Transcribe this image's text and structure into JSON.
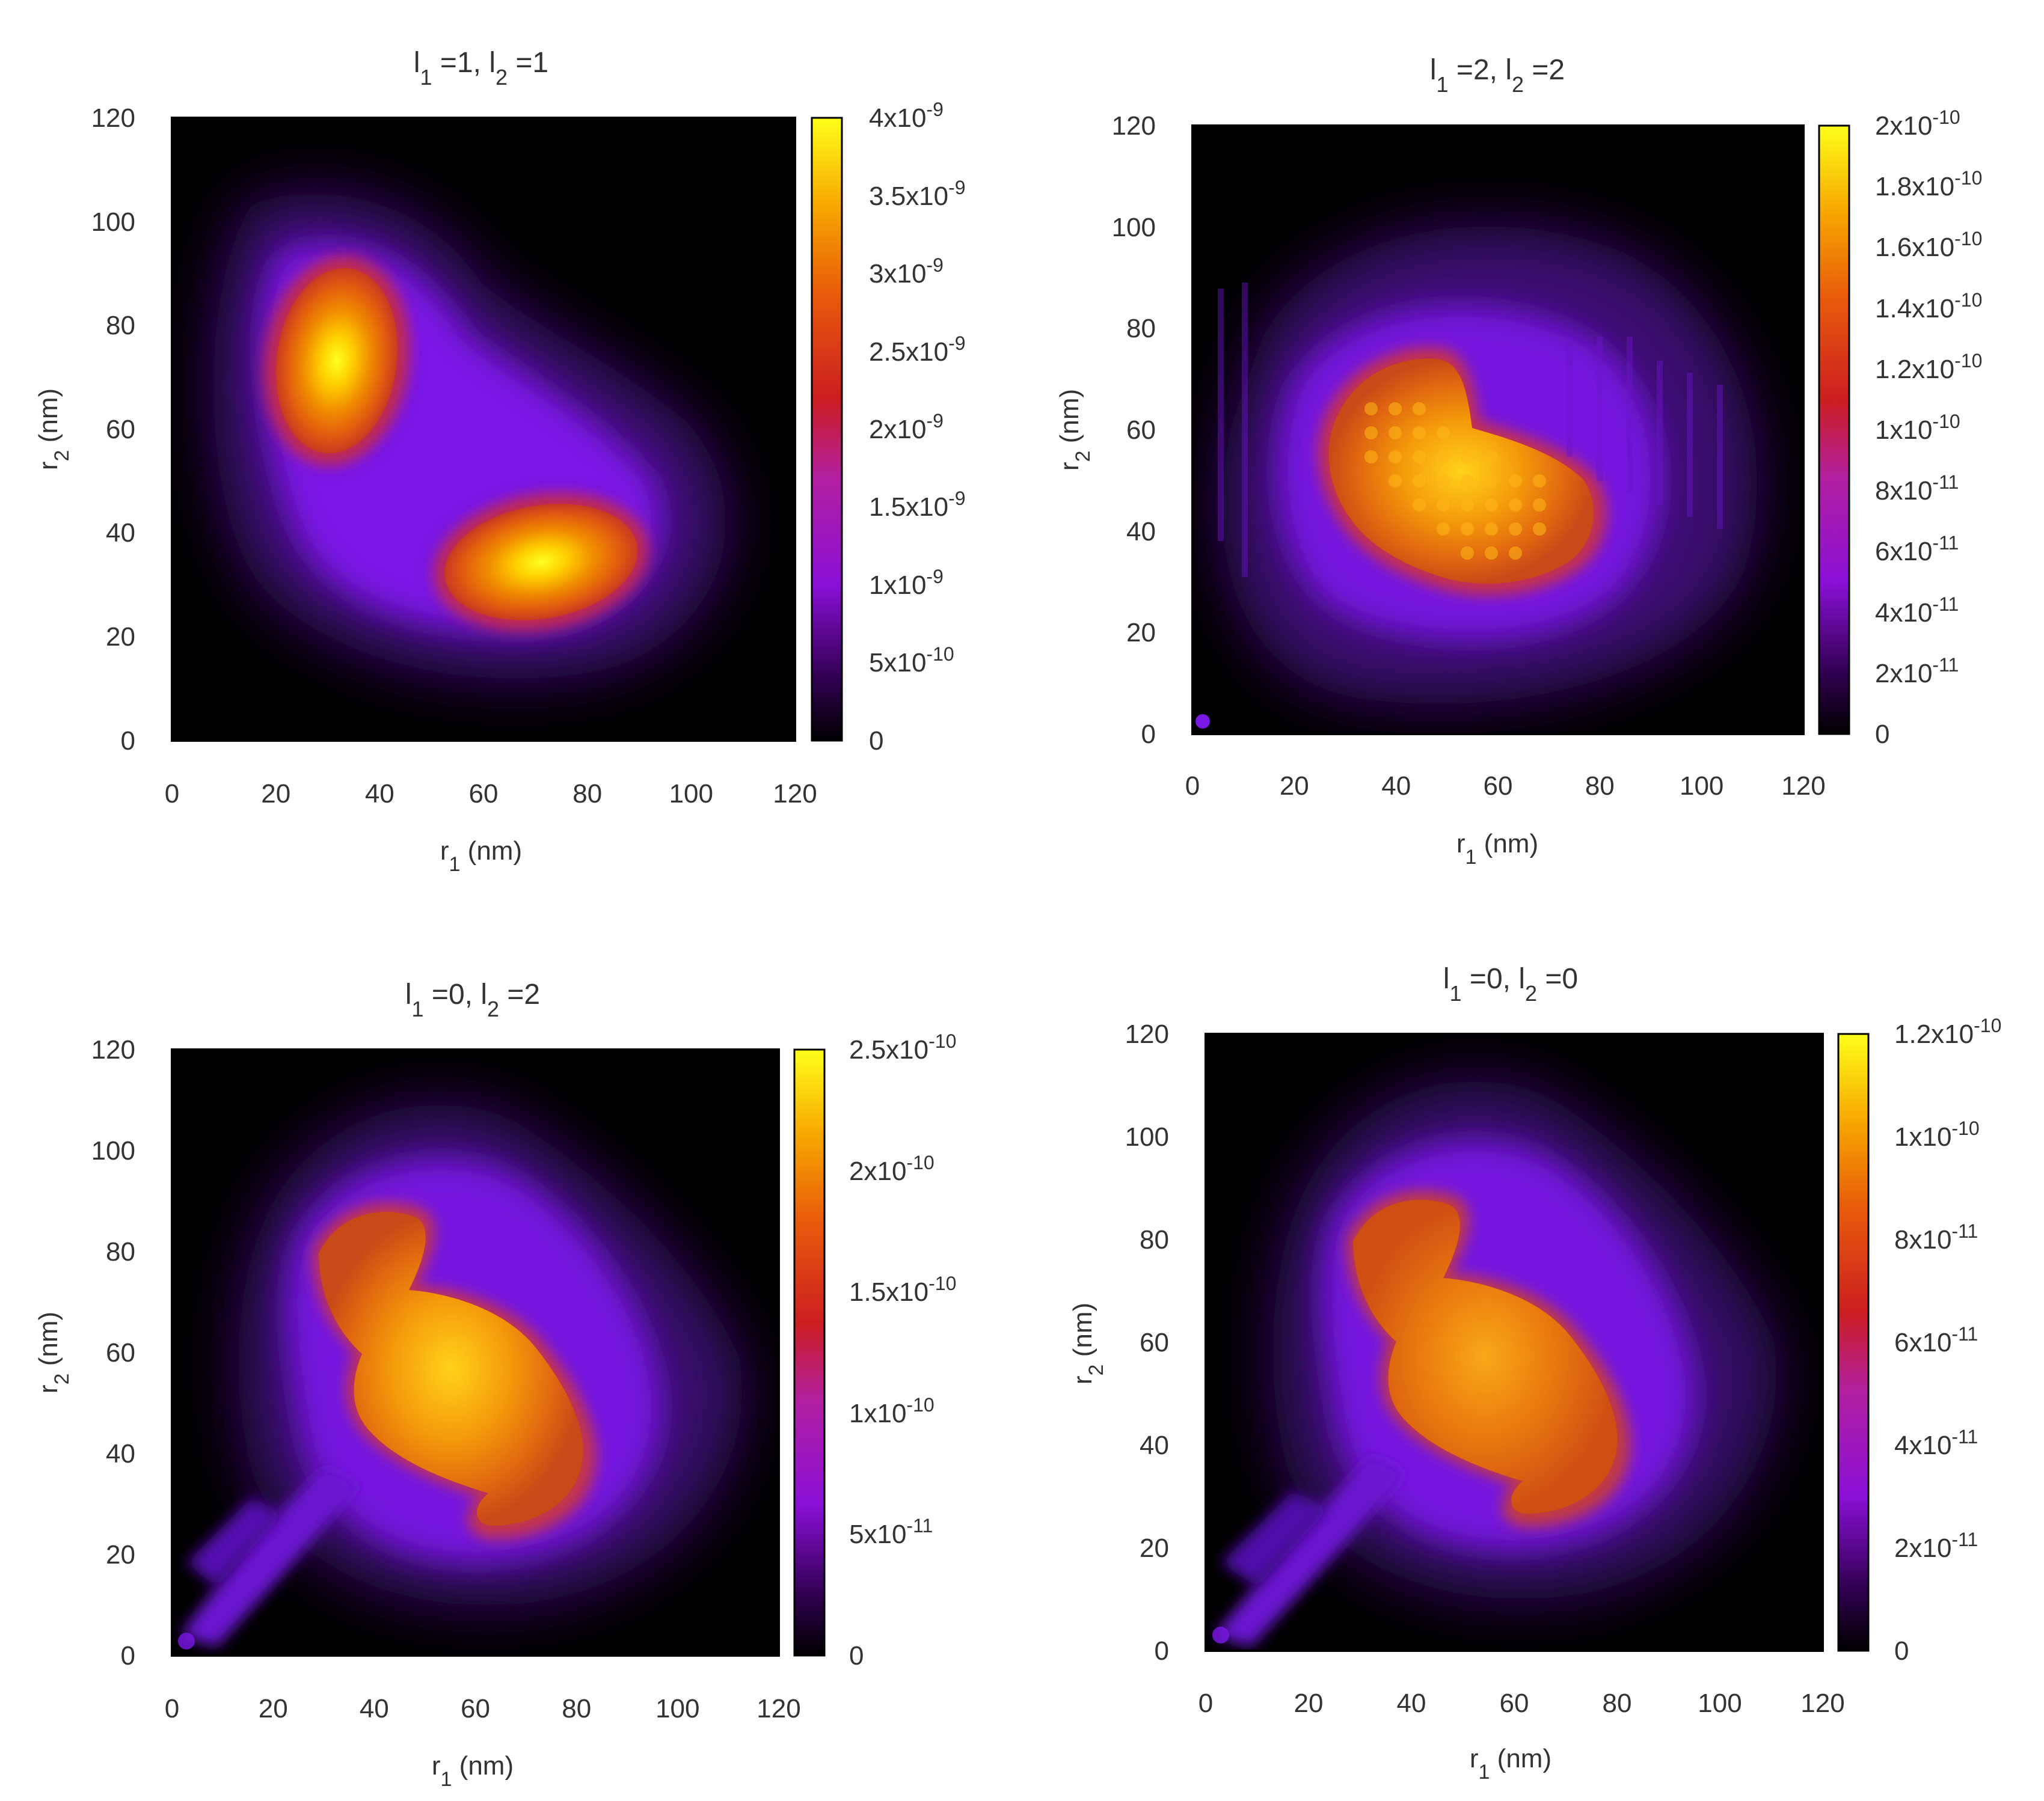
{
  "chart_data": [
    {
      "type": "heatmap",
      "title": {
        "l1": "1",
        "l2": "1"
      },
      "xlabel": "r1 (nm)",
      "ylabel": "r2 (nm)",
      "xlim": [
        0,
        120
      ],
      "ylim": [
        0,
        120
      ],
      "x_ticks": [
        "0",
        "20",
        "40",
        "60",
        "80",
        "100",
        "120"
      ],
      "y_ticks": [
        "0",
        "20",
        "40",
        "60",
        "80",
        "100",
        "120"
      ],
      "colorbar": {
        "range": [
          0,
          4e-09
        ],
        "ticks": [
          {
            "value": 0,
            "mant": "0",
            "exp": ""
          },
          {
            "value": 5e-10,
            "mant": "5x10",
            "exp": "-10"
          },
          {
            "value": 1e-09,
            "mant": "1x10",
            "exp": "-9"
          },
          {
            "value": 1.5e-09,
            "mant": "1.5x10",
            "exp": "-9"
          },
          {
            "value": 2e-09,
            "mant": "2x10",
            "exp": "-9"
          },
          {
            "value": 2.5e-09,
            "mant": "2.5x10",
            "exp": "-9"
          },
          {
            "value": 3e-09,
            "mant": "3x10",
            "exp": "-9"
          },
          {
            "value": 3.5e-09,
            "mant": "3.5x10",
            "exp": "-9"
          },
          {
            "value": 4e-09,
            "mant": "4x10",
            "exp": "-9"
          }
        ]
      },
      "density_peaks": [
        {
          "r1": 33,
          "r2": 73,
          "value": 3.9e-09
        },
        {
          "r1": 72,
          "r2": 32,
          "value": 3.8e-09
        }
      ]
    },
    {
      "type": "heatmap",
      "title": {
        "l1": "2",
        "l2": "2"
      },
      "xlabel": "r1 (nm)",
      "ylabel": "r2 (nm)",
      "xlim": [
        0,
        120
      ],
      "ylim": [
        0,
        120
      ],
      "x_ticks": [
        "0",
        "20",
        "40",
        "60",
        "80",
        "100",
        "120"
      ],
      "y_ticks": [
        "0",
        "20",
        "40",
        "60",
        "80",
        "100",
        "120"
      ],
      "colorbar": {
        "range": [
          0,
          2e-10
        ],
        "ticks": [
          {
            "value": 0,
            "mant": "0",
            "exp": ""
          },
          {
            "value": 2e-11,
            "mant": "2x10",
            "exp": "-11"
          },
          {
            "value": 4e-11,
            "mant": "4x10",
            "exp": "-11"
          },
          {
            "value": 6e-11,
            "mant": "6x10",
            "exp": "-11"
          },
          {
            "value": 8e-11,
            "mant": "8x10",
            "exp": "-11"
          },
          {
            "value": 1e-10,
            "mant": "1x10",
            "exp": "-10"
          },
          {
            "value": 1.2e-10,
            "mant": "1.2x10",
            "exp": "-10"
          },
          {
            "value": 1.4e-10,
            "mant": "1.4x10",
            "exp": "-10"
          },
          {
            "value": 1.6e-10,
            "mant": "1.6x10",
            "exp": "-10"
          },
          {
            "value": 1.8e-10,
            "mant": "1.8x10",
            "exp": "-10"
          },
          {
            "value": 2e-10,
            "mant": "2x10",
            "exp": "-10"
          }
        ]
      },
      "density_peaks": [
        {
          "r1": 45,
          "r2": 58,
          "value": 1.8e-10
        },
        {
          "r1": 58,
          "r2": 45,
          "value": 1.75e-10
        }
      ]
    },
    {
      "type": "heatmap",
      "title": {
        "l1": "0",
        "l2": "2"
      },
      "xlabel": "r1 (nm)",
      "ylabel": "r2 (nm)",
      "xlim": [
        0,
        120
      ],
      "ylim": [
        0,
        120
      ],
      "x_ticks": [
        "0",
        "20",
        "40",
        "60",
        "80",
        "100",
        "120"
      ],
      "y_ticks": [
        "0",
        "20",
        "40",
        "60",
        "80",
        "100",
        "120"
      ],
      "colorbar": {
        "range": [
          0,
          2.5e-10
        ],
        "ticks": [
          {
            "value": 0,
            "mant": "0",
            "exp": ""
          },
          {
            "value": 5e-11,
            "mant": "5x10",
            "exp": "-11"
          },
          {
            "value": 1e-10,
            "mant": "1x10",
            "exp": "-10"
          },
          {
            "value": 1.5e-10,
            "mant": "1.5x10",
            "exp": "-10"
          },
          {
            "value": 2e-10,
            "mant": "2x10",
            "exp": "-10"
          },
          {
            "value": 2.5e-10,
            "mant": "2.5x10",
            "exp": "-10"
          }
        ]
      },
      "density_peaks": [
        {
          "r1": 52,
          "r2": 52,
          "value": 2.3e-10
        }
      ]
    },
    {
      "type": "heatmap",
      "title": {
        "l1": "0",
        "l2": "0"
      },
      "xlabel": "r1 (nm)",
      "ylabel": "r2 (nm)",
      "xlim": [
        0,
        120
      ],
      "ylim": [
        0,
        120
      ],
      "x_ticks": [
        "0",
        "20",
        "40",
        "60",
        "80",
        "100",
        "120"
      ],
      "y_ticks": [
        "0",
        "20",
        "40",
        "60",
        "80",
        "100",
        "120"
      ],
      "colorbar": {
        "range": [
          0,
          1.2e-10
        ],
        "ticks": [
          {
            "value": 0,
            "mant": "0",
            "exp": ""
          },
          {
            "value": 2e-11,
            "mant": "2x10",
            "exp": "-11"
          },
          {
            "value": 4e-11,
            "mant": "4x10",
            "exp": "-11"
          },
          {
            "value": 6e-11,
            "mant": "6x10",
            "exp": "-11"
          },
          {
            "value": 8e-11,
            "mant": "8x10",
            "exp": "-11"
          },
          {
            "value": 1e-10,
            "mant": "1x10",
            "exp": "-10"
          },
          {
            "value": 1.2e-10,
            "mant": "1.2x10",
            "exp": "-10"
          }
        ]
      },
      "density_peaks": [
        {
          "r1": 52,
          "r2": 52,
          "value": 9.5e-11
        }
      ]
    }
  ]
}
